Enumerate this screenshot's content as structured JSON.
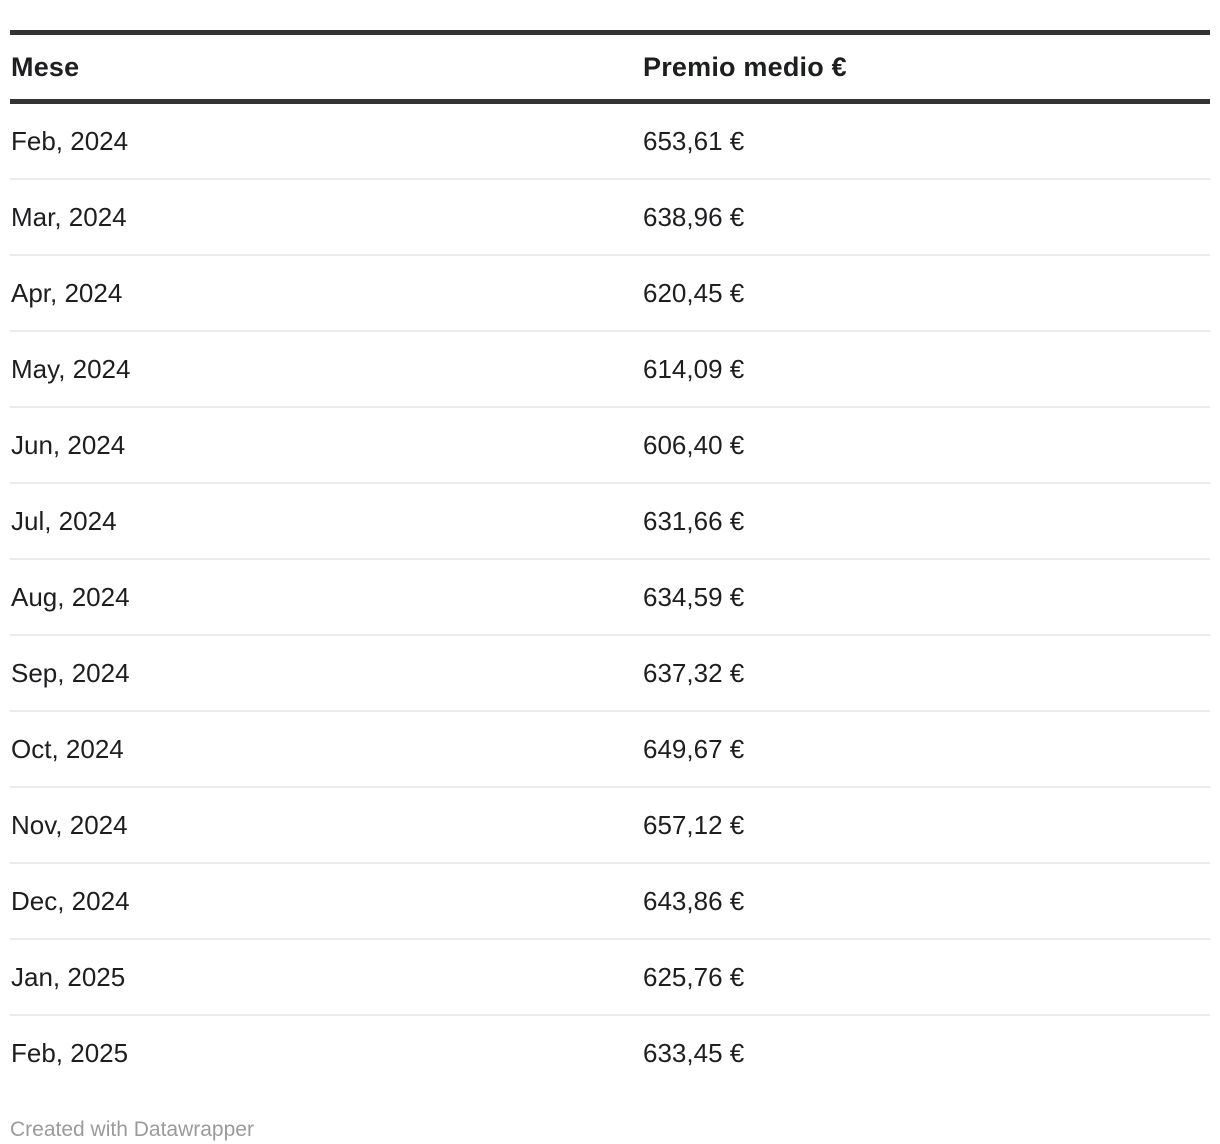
{
  "table": {
    "columns": [
      "Mese",
      "Premio medio €"
    ],
    "rows": [
      {
        "mese": "Feb, 2024",
        "premio": "653,61 €"
      },
      {
        "mese": "Mar, 2024",
        "premio": "638,96 €"
      },
      {
        "mese": "Apr, 2024",
        "premio": "620,45 €"
      },
      {
        "mese": "May, 2024",
        "premio": "614,09 €"
      },
      {
        "mese": "Jun, 2024",
        "premio": "606,40 €"
      },
      {
        "mese": "Jul, 2024",
        "premio": "631,66 €"
      },
      {
        "mese": "Aug, 2024",
        "premio": "634,59 €"
      },
      {
        "mese": "Sep, 2024",
        "premio": "637,32 €"
      },
      {
        "mese": "Oct, 2024",
        "premio": "649,67 €"
      },
      {
        "mese": "Nov, 2024",
        "premio": "657,12 €"
      },
      {
        "mese": "Dec, 2024",
        "premio": "643,86 €"
      },
      {
        "mese": "Jan, 2025",
        "premio": "625,76 €"
      },
      {
        "mese": "Feb, 2025",
        "premio": "633,45 €"
      }
    ]
  },
  "footer": {
    "attribution": "Created with Datawrapper"
  },
  "colors": {
    "text": "#1d1e20",
    "header_border": "#333333",
    "row_divider": "#ebebeb",
    "attribution_text": "#9b9b9b",
    "background": "#ffffff"
  },
  "chart_data": {
    "type": "table",
    "columns": [
      "Mese",
      "Premio medio €"
    ],
    "categories": [
      "Feb, 2024",
      "Mar, 2024",
      "Apr, 2024",
      "May, 2024",
      "Jun, 2024",
      "Jul, 2024",
      "Aug, 2024",
      "Sep, 2024",
      "Oct, 2024",
      "Nov, 2024",
      "Dec, 2024",
      "Jan, 2025",
      "Feb, 2025"
    ],
    "values": [
      653.61,
      638.96,
      620.45,
      614.09,
      606.4,
      631.66,
      634.59,
      637.32,
      649.67,
      657.12,
      643.86,
      625.76,
      633.45
    ],
    "value_unit": "€",
    "title": "",
    "attribution": "Created with Datawrapper"
  }
}
